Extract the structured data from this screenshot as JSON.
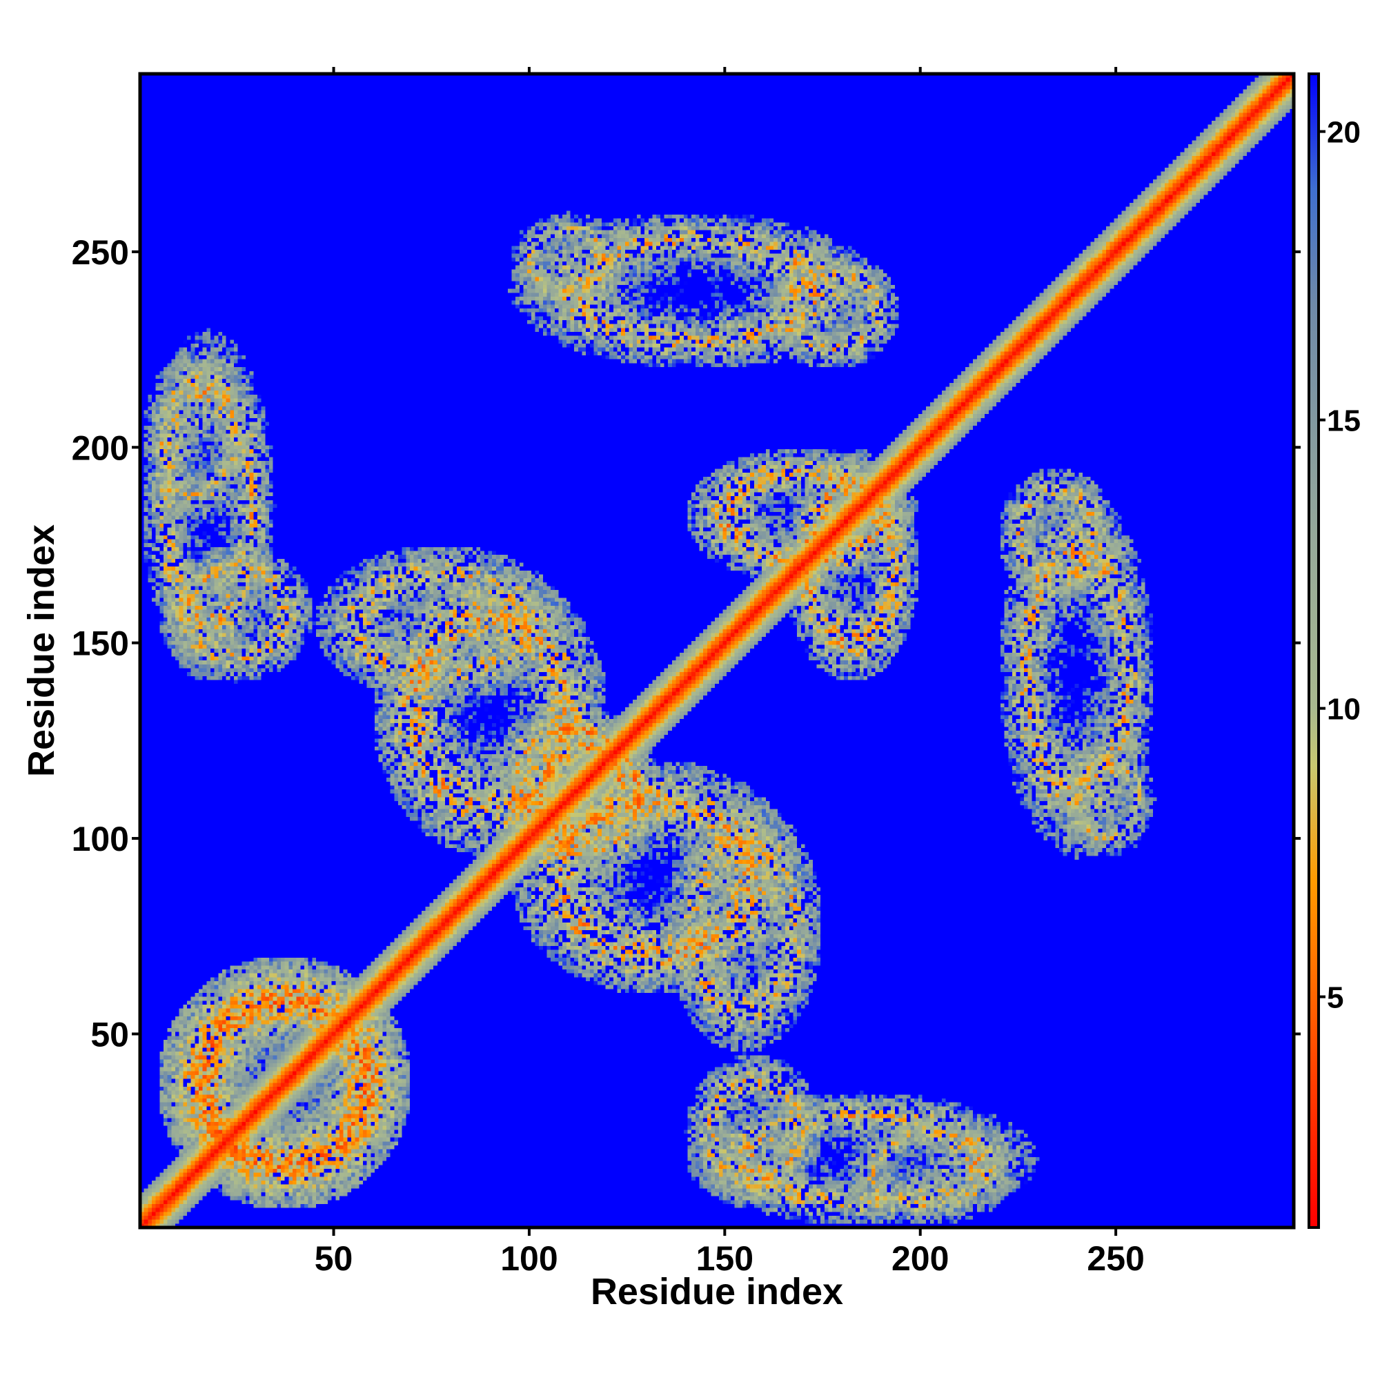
{
  "chart_data": {
    "type": "heatmap",
    "subtype": "residue-distance-contact-map",
    "xlabel": "Residue index",
    "ylabel": "Residue index",
    "x_range": [
      1,
      295
    ],
    "y_range": [
      1,
      295
    ],
    "x_ticks": [
      50,
      100,
      150,
      200,
      250
    ],
    "y_ticks": [
      50,
      100,
      150,
      200,
      250
    ],
    "colorbar": {
      "range": [
        1,
        21
      ],
      "ticks": [
        5,
        10,
        15,
        20
      ],
      "stops": [
        {
          "value": 1,
          "color": "#ff0000"
        },
        {
          "value": 4,
          "color": "#ff4a00"
        },
        {
          "value": 7,
          "color": "#ff9a00"
        },
        {
          "value": 9,
          "color": "#c8c870"
        },
        {
          "value": 10,
          "color": "#a9b98f"
        },
        {
          "value": 13,
          "color": "#95a89a"
        },
        {
          "value": 17,
          "color": "#6f8aa8"
        },
        {
          "value": 19,
          "color": "#3f6fcf"
        },
        {
          "value": 21,
          "color": "#0000ff"
        }
      ],
      "saturation_color": "#0000ff"
    },
    "background_value": 21,
    "diagonal": {
      "core_value": 1,
      "band_width_residues": 8
    },
    "contact_regions": [
      {
        "x": [
          5,
          70
        ],
        "y": [
          5,
          70
        ],
        "min_value": 3
      },
      {
        "x": [
          60,
          120
        ],
        "y": [
          95,
          170
        ],
        "min_value": 4
      },
      {
        "x": [
          95,
          135
        ],
        "y": [
          90,
          130
        ],
        "min_value": 4
      },
      {
        "x": [
          135,
          175
        ],
        "y": [
          45,
          110
        ],
        "min_value": 5
      },
      {
        "x": [
          165,
          200
        ],
        "y": [
          140,
          200
        ],
        "min_value": 4
      },
      {
        "x": [
          220,
          260
        ],
        "y": [
          95,
          190
        ],
        "min_value": 5
      },
      {
        "x": [
          160,
          195
        ],
        "y": [
          220,
          250
        ],
        "min_value": 5
      },
      {
        "x": [
          95,
          125
        ],
        "y": [
          235,
          260
        ],
        "min_value": 6
      },
      {
        "x": [
          1,
          35
        ],
        "y": [
          140,
          230
        ],
        "min_value": 5
      },
      {
        "x": [
          140,
          175
        ],
        "y": [
          5,
          45
        ],
        "min_value": 5
      },
      {
        "x": [
          180,
          225
        ],
        "y": [
          1,
          30
        ],
        "min_value": 6
      }
    ]
  }
}
